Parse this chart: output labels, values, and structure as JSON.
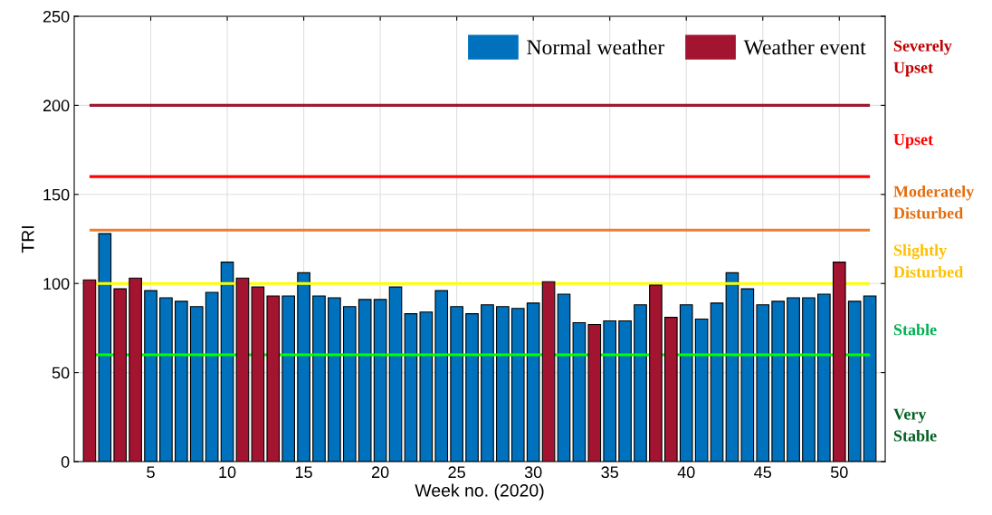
{
  "chart_data": {
    "type": "bar",
    "xlabel": "Week no. (2020)",
    "ylabel": "TRI",
    "x": [
      1,
      2,
      3,
      4,
      5,
      6,
      7,
      8,
      9,
      10,
      11,
      12,
      13,
      14,
      15,
      16,
      17,
      18,
      19,
      20,
      21,
      22,
      23,
      24,
      25,
      26,
      27,
      28,
      29,
      30,
      31,
      32,
      33,
      34,
      35,
      36,
      37,
      38,
      39,
      40,
      41,
      42,
      43,
      44,
      45,
      46,
      47,
      48,
      49,
      50,
      51,
      52
    ],
    "series": [
      {
        "name": "Normal weather",
        "color": "#0072bd",
        "values": [
          null,
          128,
          null,
          null,
          96,
          92,
          90,
          87,
          95,
          112,
          null,
          null,
          null,
          93,
          106,
          93,
          92,
          87,
          91,
          91,
          98,
          83,
          84,
          96,
          87,
          83,
          88,
          87,
          86,
          89,
          null,
          94,
          78,
          null,
          79,
          79,
          88,
          null,
          null,
          88,
          80,
          89,
          106,
          97,
          88,
          90,
          92,
          92,
          94,
          null,
          90,
          93
        ]
      },
      {
        "name": "Weather event",
        "color": "#a2142f",
        "values": [
          102,
          null,
          97,
          103,
          null,
          null,
          null,
          null,
          null,
          null,
          103,
          98,
          93,
          null,
          null,
          null,
          null,
          null,
          null,
          null,
          null,
          null,
          null,
          null,
          null,
          null,
          null,
          null,
          null,
          null,
          101,
          null,
          null,
          77,
          null,
          null,
          null,
          99,
          81,
          null,
          null,
          null,
          null,
          null,
          null,
          null,
          null,
          null,
          null,
          112,
          null,
          null
        ]
      }
    ],
    "xlim": [
      0,
      53
    ],
    "xticks": [
      5,
      10,
      15,
      20,
      25,
      30,
      35,
      40,
      45,
      50
    ],
    "ylim": [
      0,
      250
    ],
    "yticks": [
      0,
      50,
      100,
      150,
      200,
      250
    ],
    "grid": true,
    "legend": "top right",
    "ref_lines": [
      {
        "axis": "y",
        "value": 200,
        "color": "#9b1b30"
      },
      {
        "axis": "y",
        "value": 160,
        "color": "#ff0000"
      },
      {
        "axis": "y",
        "value": 130,
        "color": "#ed7d31"
      },
      {
        "axis": "y",
        "value": 100,
        "color": "#ffff00"
      },
      {
        "axis": "y",
        "value": 60,
        "color": "#00ff00"
      }
    ],
    "annotations": [
      "Severely\nUpset",
      "Upset",
      "Moderately\nDisturbed",
      "Slightly\nDisturbed",
      "Stable",
      "Very\nStable"
    ]
  }
}
